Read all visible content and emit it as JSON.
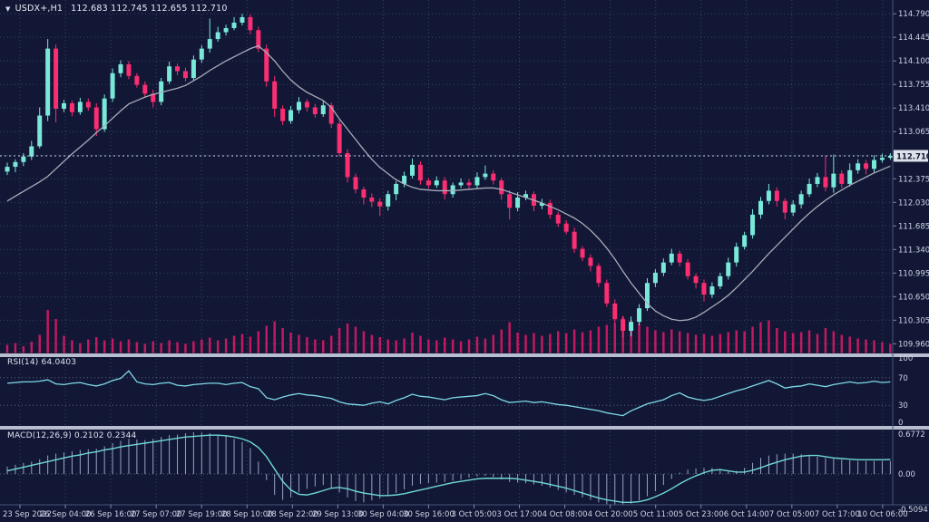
{
  "window": {
    "dropdown_icon": "▼",
    "symbol_period": "USDX+,H1",
    "ohlc_line": "112.683 112.745 112.655 112.710"
  },
  "colors": {
    "background": "#111735",
    "grid": "rgba(165,180,220,0.28)",
    "bull": "#79e8d9",
    "bear": "#fb2e72",
    "volume": "#c01a60",
    "ma_line": "#a7adb8",
    "rsi_line": "#7fd8e8",
    "macd_signal": "#6fd8d4",
    "macd_histogram": "#98a2c8",
    "separator": "#b7bed0",
    "axis_text": "#cfd5e6",
    "price_box_bg": "#dde1ec",
    "price_box_text": "#11162f"
  },
  "price_axis": {
    "labels": [
      "114.790",
      "114.445",
      "114.100",
      "113.755",
      "113.410",
      "113.065",
      "112.720",
      "112.375",
      "112.030",
      "111.685",
      "111.340",
      "110.995",
      "110.650",
      "110.305",
      "109.960"
    ],
    "hidden_behind_price_box": "112.720",
    "current_price": "112.710"
  },
  "time_axis": {
    "labels": [
      "23 Sep 2022",
      "26 Sep 04:00",
      "26 Sep 16:00",
      "27 Sep 07:00",
      "27 Sep 19:00",
      "28 Sep 10:00",
      "28 Sep 22:00",
      "29 Sep 13:00",
      "30 Sep 04:00",
      "30 Sep 16:00",
      "3 Oct 05:00",
      "3 Oct 17:00",
      "4 Oct 08:00",
      "4 Oct 20:00",
      "5 Oct 11:00",
      "5 Oct 23:00",
      "6 Oct 14:00",
      "7 Oct 05:00",
      "7 Oct 17:00",
      "10 Oct 06:00"
    ]
  },
  "panels": {
    "rsi": {
      "label": "RSI(14) 64.0403",
      "levels": [
        "100",
        "70",
        "30",
        "0"
      ]
    },
    "macd": {
      "label": "MACD(12,26,9) 0.2102 0.2344",
      "levels": [
        "0.6772",
        "0.00",
        "-0.5094"
      ]
    }
  },
  "chart_data": {
    "type": "candlestick",
    "symbol": "USDX+",
    "timeframe": "H1",
    "last_candle": {
      "open": 112.683,
      "high": 112.745,
      "low": 112.655,
      "close": 112.71
    },
    "price_range": {
      "min": 109.96,
      "max": 114.79,
      "grid_step": 0.345
    },
    "x_labels": [
      "23 Sep 2022",
      "26 Sep 04:00",
      "26 Sep 16:00",
      "27 Sep 07:00",
      "27 Sep 19:00",
      "28 Sep 10:00",
      "28 Sep 22:00",
      "29 Sep 13:00",
      "30 Sep 04:00",
      "30 Sep 16:00",
      "3 Oct 05:00",
      "3 Oct 17:00",
      "4 Oct 08:00",
      "4 Oct 20:00",
      "5 Oct 11:00",
      "5 Oct 23:00",
      "6 Oct 14:00",
      "7 Oct 05:00",
      "7 Oct 17:00",
      "10 Oct 06:00"
    ],
    "first_open": 112.48,
    "closes": [
      112.55,
      112.62,
      112.7,
      112.85,
      113.3,
      114.28,
      113.4,
      113.48,
      113.35,
      113.5,
      113.42,
      113.1,
      113.55,
      113.92,
      114.05,
      113.88,
      113.75,
      113.62,
      113.5,
      113.8,
      114.02,
      113.95,
      113.85,
      114.12,
      114.28,
      114.42,
      114.52,
      114.58,
      114.66,
      114.74,
      114.55,
      114.28,
      113.8,
      113.4,
      113.22,
      113.38,
      113.5,
      113.42,
      113.32,
      113.45,
      113.18,
      112.75,
      112.4,
      112.22,
      112.1,
      112.04,
      111.97,
      112.15,
      112.3,
      112.42,
      112.58,
      112.35,
      112.28,
      112.35,
      112.15,
      112.28,
      112.32,
      112.28,
      112.4,
      112.45,
      112.35,
      112.15,
      111.95,
      112.1,
      112.15,
      111.98,
      112.02,
      111.85,
      111.72,
      111.6,
      111.35,
      111.22,
      111.1,
      110.85,
      110.55,
      110.32,
      110.15,
      110.28,
      110.48,
      110.85,
      111.0,
      111.15,
      111.28,
      111.15,
      110.95,
      110.85,
      110.68,
      110.8,
      110.95,
      111.15,
      111.38,
      111.55,
      111.85,
      112.05,
      112.2,
      112.05,
      111.88,
      112.0,
      112.15,
      112.3,
      112.4,
      112.25,
      112.45,
      112.3,
      112.5,
      112.6,
      112.52,
      112.65,
      112.683,
      112.71
    ],
    "wick_up_cents": [
      6,
      4,
      5,
      8,
      12,
      14,
      6,
      5,
      4,
      6,
      5,
      6,
      6,
      7,
      6,
      5,
      4,
      5,
      6,
      5,
      7,
      4,
      5,
      6,
      5,
      30,
      8,
      5,
      8,
      5,
      4,
      5,
      6,
      8,
      5,
      6,
      7,
      4,
      5,
      6,
      4,
      5,
      6,
      5,
      4,
      6,
      5,
      5,
      4,
      6,
      9,
      5,
      4,
      6,
      5,
      4,
      6,
      5,
      7,
      12,
      5,
      4,
      6,
      8,
      5,
      4,
      6,
      5,
      4,
      5,
      6,
      4,
      5,
      4,
      5,
      6,
      5,
      8,
      6,
      7,
      5,
      6,
      7,
      4,
      5,
      4,
      5,
      6,
      5,
      7,
      6,
      5,
      8,
      6,
      10,
      5,
      4,
      6,
      5,
      8,
      6,
      31,
      28,
      5,
      10,
      6,
      5,
      7,
      6,
      4
    ],
    "wick_dn_cents": [
      5,
      8,
      6,
      5,
      3,
      8,
      20,
      5,
      6,
      4,
      5,
      10,
      4,
      5,
      6,
      5,
      4,
      6,
      8,
      5,
      4,
      6,
      5,
      4,
      5,
      6,
      4,
      5,
      3,
      4,
      6,
      5,
      8,
      12,
      6,
      4,
      5,
      6,
      5,
      4,
      6,
      5,
      8,
      6,
      10,
      8,
      14,
      6,
      9,
      5,
      4,
      6,
      5,
      4,
      8,
      5,
      4,
      6,
      5,
      4,
      6,
      8,
      17,
      5,
      4,
      8,
      5,
      6,
      5,
      4,
      6,
      5,
      8,
      6,
      5,
      6,
      10,
      8,
      5,
      4,
      6,
      5,
      4,
      6,
      5,
      8,
      10,
      5,
      4,
      5,
      6,
      4,
      5,
      6,
      5,
      8,
      10,
      5,
      6,
      4,
      5,
      6,
      8,
      6,
      4,
      5,
      8,
      5,
      4,
      3
    ],
    "volume": [
      18,
      22,
      15,
      25,
      40,
      95,
      75,
      38,
      28,
      22,
      30,
      35,
      28,
      32,
      26,
      30,
      24,
      20,
      26,
      22,
      28,
      24,
      20,
      26,
      30,
      34,
      28,
      32,
      38,
      42,
      36,
      48,
      60,
      70,
      55,
      45,
      40,
      35,
      30,
      28,
      38,
      55,
      65,
      58,
      48,
      40,
      35,
      30,
      28,
      32,
      45,
      38,
      30,
      28,
      34,
      30,
      26,
      30,
      36,
      32,
      40,
      52,
      68,
      45,
      40,
      44,
      38,
      42,
      48,
      44,
      52,
      46,
      50,
      58,
      62,
      66,
      80,
      72,
      65,
      58,
      50,
      46,
      52,
      48,
      44,
      40,
      42,
      38,
      42,
      46,
      50,
      48,
      58,
      68,
      72,
      55,
      48,
      44,
      46,
      50,
      42,
      55,
      48,
      40,
      36,
      32,
      30,
      28,
      24,
      20
    ],
    "ma": [
      112.05,
      112.12,
      112.19,
      112.26,
      112.33,
      112.41,
      112.52,
      112.63,
      112.74,
      112.84,
      112.94,
      113.05,
      113.15,
      113.26,
      113.37,
      113.47,
      113.52,
      113.57,
      113.61,
      113.64,
      113.67,
      113.7,
      113.74,
      113.81,
      113.88,
      113.96,
      114.03,
      114.1,
      114.16,
      114.22,
      114.28,
      114.32,
      114.22,
      114.1,
      113.95,
      113.82,
      113.72,
      113.64,
      113.58,
      113.52,
      113.42,
      113.25,
      113.1,
      112.95,
      112.8,
      112.66,
      112.54,
      112.45,
      112.36,
      112.3,
      112.25,
      112.22,
      112.21,
      112.2,
      112.2,
      112.2,
      112.21,
      112.22,
      112.23,
      112.24,
      112.24,
      112.22,
      112.18,
      112.14,
      112.1,
      112.06,
      112.02,
      111.97,
      111.92,
      111.86,
      111.8,
      111.72,
      111.62,
      111.5,
      111.36,
      111.2,
      111.02,
      110.85,
      110.7,
      110.55,
      110.44,
      110.37,
      110.32,
      110.3,
      110.31,
      110.35,
      110.42,
      110.5,
      110.58,
      110.67,
      110.78,
      110.9,
      111.02,
      111.15,
      111.28,
      111.4,
      111.52,
      111.64,
      111.76,
      111.87,
      111.97,
      112.06,
      112.14,
      112.21,
      112.28,
      112.34,
      112.4,
      112.46,
      112.51,
      112.56
    ],
    "rsi": {
      "period": 14,
      "last": 64.0403,
      "range": [
        0,
        100
      ],
      "levels": [
        70,
        30
      ],
      "values": [
        62,
        63,
        64,
        64,
        65,
        67,
        61,
        60,
        62,
        63,
        60,
        58,
        61,
        66,
        69,
        80,
        64,
        61,
        60,
        62,
        63,
        59,
        58,
        60,
        61,
        62,
        62,
        60,
        62,
        63,
        57,
        54,
        41,
        38,
        42,
        45,
        47,
        45,
        44,
        42,
        40,
        35,
        32,
        31,
        30,
        33,
        35,
        32,
        37,
        41,
        46,
        43,
        42,
        40,
        38,
        41,
        42,
        43,
        44,
        47,
        44,
        38,
        34,
        35,
        36,
        34,
        35,
        33,
        31,
        30,
        28,
        26,
        24,
        22,
        19,
        17,
        15,
        22,
        27,
        32,
        35,
        38,
        44,
        48,
        42,
        39,
        37,
        39,
        43,
        47,
        51,
        54,
        58,
        62,
        66,
        61,
        55,
        57,
        58,
        61,
        59,
        57,
        60,
        62,
        64,
        62,
        63,
        65,
        63,
        64
      ]
    },
    "macd": {
      "params": "12,26,9",
      "main_last": 0.2102,
      "signal_last": 0.2344,
      "scale_top": 0.6772,
      "scale_bottom": -0.5094,
      "signal": [
        0.05,
        0.08,
        0.11,
        0.14,
        0.17,
        0.2,
        0.23,
        0.26,
        0.29,
        0.31,
        0.34,
        0.36,
        0.39,
        0.41,
        0.44,
        0.46,
        0.48,
        0.5,
        0.52,
        0.54,
        0.56,
        0.58,
        0.6,
        0.61,
        0.62,
        0.63,
        0.63,
        0.62,
        0.6,
        0.57,
        0.52,
        0.43,
        0.28,
        0.08,
        -0.12,
        -0.26,
        -0.33,
        -0.34,
        -0.31,
        -0.27,
        -0.23,
        -0.22,
        -0.24,
        -0.28,
        -0.31,
        -0.33,
        -0.35,
        -0.35,
        -0.34,
        -0.32,
        -0.29,
        -0.26,
        -0.23,
        -0.2,
        -0.17,
        -0.14,
        -0.12,
        -0.1,
        -0.08,
        -0.07,
        -0.07,
        -0.07,
        -0.07,
        -0.08,
        -0.1,
        -0.12,
        -0.14,
        -0.17,
        -0.2,
        -0.23,
        -0.27,
        -0.31,
        -0.35,
        -0.39,
        -0.42,
        -0.44,
        -0.46,
        -0.46,
        -0.45,
        -0.42,
        -0.37,
        -0.31,
        -0.24,
        -0.16,
        -0.09,
        -0.03,
        0.02,
        0.06,
        0.07,
        0.05,
        0.03,
        0.03,
        0.06,
        0.1,
        0.15,
        0.19,
        0.23,
        0.26,
        0.29,
        0.3,
        0.3,
        0.28,
        0.26,
        0.25,
        0.24,
        0.23,
        0.23,
        0.23,
        0.23,
        0.2344
      ],
      "main": [
        0.12,
        0.15,
        0.18,
        0.2,
        0.24,
        0.3,
        0.33,
        0.35,
        0.37,
        0.39,
        0.4,
        0.41,
        0.45,
        0.5,
        0.54,
        0.57,
        0.56,
        0.55,
        0.57,
        0.6,
        0.63,
        0.64,
        0.66,
        0.677,
        0.67,
        0.66,
        0.64,
        0.61,
        0.57,
        0.52,
        0.42,
        0.2,
        -0.1,
        -0.34,
        -0.42,
        -0.38,
        -0.3,
        -0.24,
        -0.2,
        -0.18,
        -0.22,
        -0.3,
        -0.38,
        -0.44,
        -0.46,
        -0.43,
        -0.4,
        -0.36,
        -0.31,
        -0.25,
        -0.19,
        -0.16,
        -0.15,
        -0.14,
        -0.13,
        -0.11,
        -0.09,
        -0.06,
        -0.04,
        -0.03,
        -0.05,
        -0.09,
        -0.13,
        -0.14,
        -0.15,
        -0.17,
        -0.19,
        -0.22,
        -0.26,
        -0.3,
        -0.34,
        -0.38,
        -0.42,
        -0.46,
        -0.49,
        -0.505,
        -0.509,
        -0.48,
        -0.43,
        -0.36,
        -0.28,
        -0.18,
        -0.08,
        0.02,
        0.07,
        0.09,
        0.1,
        0.1,
        0.08,
        0.04,
        0.05,
        0.1,
        0.18,
        0.26,
        0.3,
        0.32,
        0.33,
        0.33,
        0.32,
        0.3,
        0.28,
        0.26,
        0.25,
        0.23,
        0.22,
        0.21,
        0.21,
        0.21,
        0.21,
        0.2102
      ]
    }
  }
}
